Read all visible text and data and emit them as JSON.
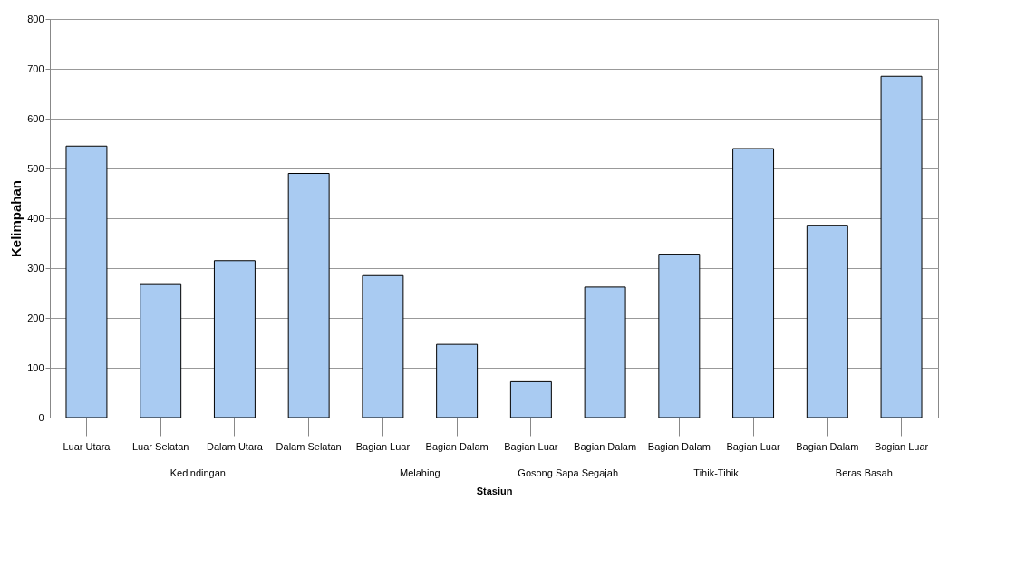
{
  "chart_data": {
    "type": "bar",
    "ylabel": "Kelimpahan",
    "xlabel": "Stasiun",
    "categories": [
      "Luar Utara",
      "Luar Selatan",
      "Dalam Utara",
      "Dalam Selatan",
      "Bagian Luar",
      "Bagian Dalam",
      "Bagian Luar",
      "Bagian Dalam",
      "Bagian Dalam",
      "Bagian Luar",
      "Bagian Dalam",
      "Bagian Luar"
    ],
    "values": [
      545,
      267,
      315,
      490,
      285,
      147,
      72,
      262,
      328,
      540,
      386,
      685
    ],
    "color": "#a9cbf2",
    "ylim": [
      0,
      800
    ],
    "yticks": [
      0,
      100,
      200,
      300,
      400,
      500,
      600,
      700,
      800
    ],
    "grid": "y",
    "annotations": [
      "Kedindingan",
      "Melahing",
      "Gosong Sapa Segajah",
      "Tihik-Tihik",
      "Beras Basah"
    ]
  }
}
